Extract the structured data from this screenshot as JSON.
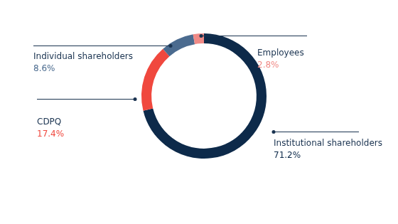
{
  "chart_data": {
    "type": "doughnut",
    "categories": [
      "Institutional shareholders",
      "CDPQ",
      "Individual shareholders",
      "Employees"
    ],
    "values": [
      71.2,
      17.4,
      8.6,
      2.8
    ],
    "value_labels": [
      "71.2%",
      "17.4%",
      "8.6%",
      "2.8%"
    ],
    "colors": [
      "#0d2a4a",
      "#f0483e",
      "#4b6b8f",
      "#f08a86"
    ],
    "data_labels": true,
    "legend": false
  }
}
